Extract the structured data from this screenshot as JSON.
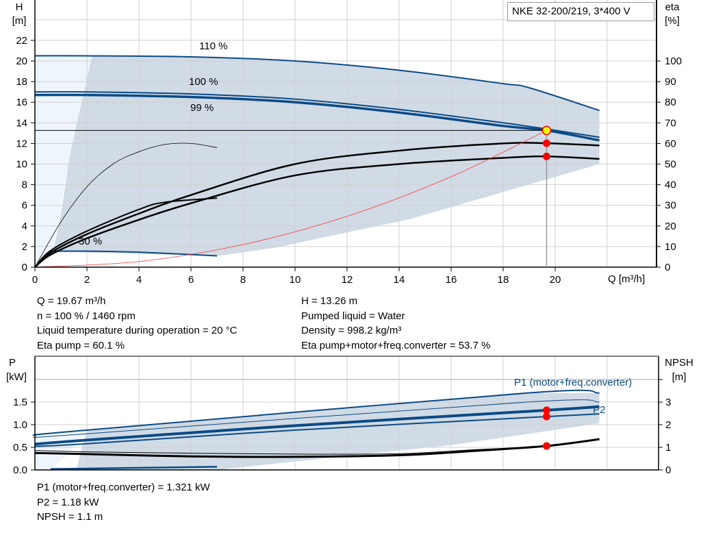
{
  "legend": {
    "pump_label": "NKE 32-200/219, 3*400 V"
  },
  "top_chart": {
    "y_left_label": [
      "H",
      "[m]"
    ],
    "y_right_label": [
      "eta",
      "[%]"
    ],
    "x_label": "Q [m³/h]",
    "curve_labels": {
      "s110": "110 %",
      "s100": "100 %",
      "s99": "99 %",
      "s30": "30 %"
    }
  },
  "bottom_chart": {
    "y_left_label": [
      "P",
      "[kW]"
    ],
    "y_right_label": [
      "NPSH",
      "[m]"
    ],
    "p1_label": "P1 (motor+freq.converter)",
    "p2_label": "P2"
  },
  "info_top_left": [
    "Q = 19.67 m³/h",
    "n = 100 % / 1460 rpm",
    "Liquid temperature during operation = 20 °C",
    "Eta pump = 60.1 %"
  ],
  "info_top_right": [
    "H = 13.26 m",
    "Pumped liquid = Water",
    "Density = 998.2 kg/m³",
    "Eta pump+motor+freq.converter = 53.7 %"
  ],
  "info_bottom": [
    "P1 (motor+freq.converter) = 1.321 kW",
    "P2 = 1.18 kW",
    "NPSH = 1.1 m"
  ],
  "colors": {
    "curve_blue": "#0b4a86",
    "envelope": "#d0dbe6",
    "envelope_light": "#eef5fc",
    "duty_point": "#ff0000",
    "duty_point_main": "#ffff00",
    "system_curve": "#ff3333",
    "grid": "#d0d0d0"
  },
  "chart_data": [
    {
      "type": "line",
      "title": "",
      "xlabel": "Q [m³/h]",
      "ylabel": "H [m]",
      "y2label": "eta [%]",
      "xlim": [
        0,
        24
      ],
      "ylim": [
        0,
        26
      ],
      "y2lim": [
        0,
        130
      ],
      "x_ticks": [
        0,
        2,
        4,
        6,
        8,
        10,
        12,
        14,
        16,
        18,
        20
      ],
      "y_ticks": [
        0,
        2,
        4,
        6,
        8,
        10,
        12,
        14,
        16,
        18,
        20,
        22
      ],
      "y2_ticks": [
        0,
        10,
        20,
        30,
        40,
        50,
        60,
        70,
        80,
        90,
        100
      ],
      "grid": true,
      "series": [
        {
          "name": "110 %",
          "axis": "H",
          "x": [
            0,
            2,
            6,
            10,
            14,
            18,
            19,
            21.7
          ],
          "y": [
            20.5,
            20.5,
            20.4,
            20.0,
            19.1,
            17.8,
            17.4,
            15.2
          ]
        },
        {
          "name": "100 %",
          "axis": "H",
          "x": [
            0,
            2,
            6,
            10,
            14,
            18,
            19.67,
            21.7
          ],
          "y": [
            17.0,
            17.0,
            16.8,
            16.3,
            15.3,
            14.0,
            13.4,
            12.6
          ]
        },
        {
          "name": "99 %",
          "axis": "H",
          "x": [
            0,
            2,
            6,
            10,
            14,
            18,
            19.67,
            21.7
          ],
          "y": [
            16.7,
            16.7,
            16.5,
            16.0,
            15.0,
            13.7,
            13.26,
            12.3
          ]
        },
        {
          "name": "30 %",
          "axis": "H",
          "x": [
            0.6,
            2,
            4,
            7
          ],
          "y": [
            1.55,
            1.55,
            1.45,
            1.1
          ]
        },
        {
          "axis": "eta",
          "x": [
            0,
            0.6,
            2,
            4,
            6,
            10,
            14,
            18,
            19.67,
            21.7
          ],
          "y": [
            0,
            7,
            16,
            26,
            35,
            50,
            56.5,
            60,
            60.1,
            59
          ]
        },
        {
          "axis": "eta",
          "x": [
            0,
            0.6,
            2,
            4,
            6,
            10,
            14,
            18,
            19.67,
            21.7
          ],
          "y": [
            0,
            6,
            14,
            23,
            31,
            44.5,
            50,
            53,
            53.7,
            52.5
          ]
        },
        {
          "axis": "eta",
          "x": [
            0,
            0.6,
            2,
            4,
            5,
            7
          ],
          "y": [
            0,
            8,
            17.5,
            28,
            31.5,
            33.5
          ]
        },
        {
          "axis": "eta",
          "x": [
            0,
            1,
            2,
            3,
            4,
            5,
            6,
            7
          ],
          "y": [
            0,
            22,
            39,
            50,
            56,
            59.5,
            60,
            58
          ]
        },
        {
          "name": "system",
          "axis": "H",
          "x": [
            0,
            4,
            8,
            12,
            16,
            19.67
          ],
          "y": [
            0,
            0.55,
            2.19,
            4.93,
            8.77,
            13.26
          ]
        }
      ],
      "duty_point": {
        "Q": 19.67,
        "H": 13.26,
        "eta_pump": 60.1,
        "eta_total": 53.7
      }
    },
    {
      "type": "line",
      "title": "",
      "xlabel": "",
      "ylabel": "P [kW]",
      "y2label": "NPSH [m]",
      "xlim": [
        0,
        24
      ],
      "ylim": [
        0,
        2.5
      ],
      "y2lim": [
        0,
        5
      ],
      "y_ticks": [
        0.0,
        0.5,
        1.0,
        1.5
      ],
      "y2_ticks": [
        0,
        1,
        2,
        3
      ],
      "grid": true,
      "series": [
        {
          "name": "P1 (motor+freq.converter)",
          "axis": "P",
          "x": [
            0,
            2,
            18.9,
            21.7
          ],
          "y": [
            0.77,
            0.88,
            1.7,
            1.7
          ]
        },
        {
          "axis": "P",
          "x": [
            0,
            2,
            18.9,
            21.7
          ],
          "y": [
            0.72,
            0.8,
            1.5,
            1.5
          ]
        },
        {
          "axis": "P",
          "x": [
            0,
            2,
            10,
            19.67,
            21.7
          ],
          "y": [
            0.57,
            0.66,
            0.98,
            1.32,
            1.4
          ]
        },
        {
          "name": "P2",
          "axis": "P",
          "x": [
            0,
            2,
            10,
            19.67,
            21.7
          ],
          "y": [
            0.52,
            0.58,
            0.88,
            1.18,
            1.24
          ]
        },
        {
          "axis": "P",
          "x": [
            0.6,
            7
          ],
          "y": [
            0.02,
            0.07
          ]
        },
        {
          "axis": "NPSH",
          "x": [
            0,
            2,
            6,
            10,
            14,
            17,
            19.67,
            21.7
          ],
          "y": [
            0.86,
            0.8,
            0.74,
            0.7,
            0.72,
            0.9,
            1.06,
            1.36
          ]
        },
        {
          "axis": "NPSH",
          "x": [
            0,
            2,
            6,
            10,
            14,
            17,
            19.67,
            21.7
          ],
          "y": [
            0.75,
            0.7,
            0.6,
            0.58,
            0.65,
            0.85,
            1.06,
            1.36
          ]
        }
      ],
      "duty_point": {
        "Q": 19.67,
        "P1": 1.321,
        "P2": 1.18,
        "NPSH": 1.1
      }
    }
  ]
}
